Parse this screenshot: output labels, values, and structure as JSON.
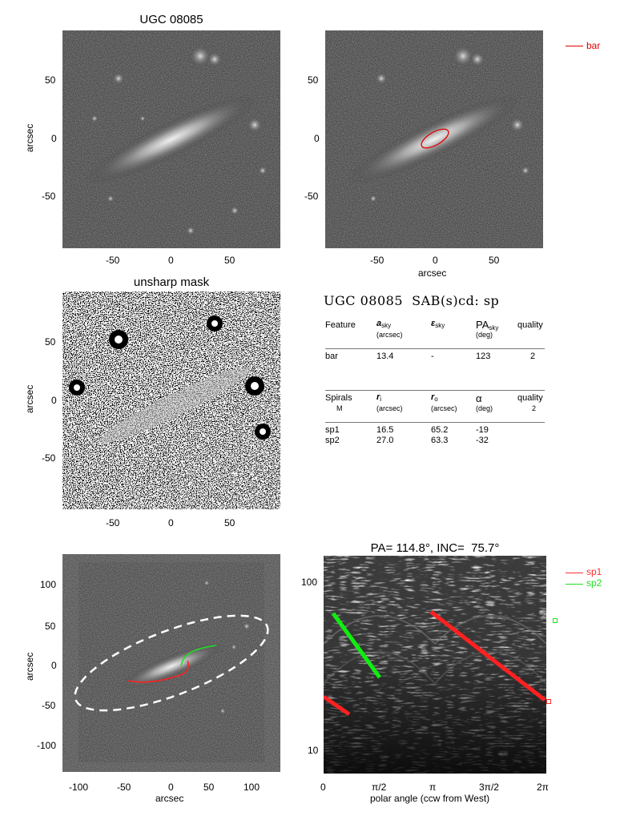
{
  "panel1": {
    "title": "UGC 08085",
    "ylabel": "arcsec",
    "yticks": [
      "50",
      "0",
      "-50"
    ],
    "xticks": [
      "-50",
      "0",
      "50"
    ]
  },
  "panel2": {
    "xlabel": "arcsec",
    "yticks": [
      "50",
      "0",
      "-50"
    ],
    "xticks": [
      "-50",
      "0",
      "50"
    ],
    "legend": "bar",
    "legend_color": "#e00000"
  },
  "panel3": {
    "title": "unsharp mask",
    "ylabel": "arcsec",
    "yticks": [
      "50",
      "0",
      "-50"
    ],
    "xticks": [
      "-50",
      "0",
      "50"
    ]
  },
  "table": {
    "heading": "UGC 08085  SAB(s)cd: sp",
    "bar_header": {
      "feature": "Feature",
      "asky": "a",
      "asky_sub": "sky",
      "asky_unit": "(arcsec)",
      "eps": "ε",
      "eps_sub": "sky",
      "pa": "PA",
      "pa_sub": "sky",
      "pa_unit": "(deg)",
      "quality": "quality"
    },
    "bar_row": {
      "feature": "bar",
      "asky": "13.4",
      "eps": "-",
      "pa": "123",
      "quality": "2"
    },
    "spiral_header": {
      "spirals": "Spirals",
      "m": "M",
      "ri": "r",
      "ri_sub": "i",
      "ri_unit": "(arcsec)",
      "ro": "r",
      "ro_sub": "o",
      "ro_unit": "(arcsec)",
      "alpha": "α",
      "alpha_unit": "(deg)",
      "quality": "quality",
      "quality_val": "2"
    },
    "spiral_rows": [
      {
        "name": "sp1",
        "ri": "16.5",
        "ro": "65.2",
        "alpha": "-19"
      },
      {
        "name": "sp2",
        "ri": "27.0",
        "ro": "63.3",
        "alpha": "-32"
      }
    ]
  },
  "panel5": {
    "xlabel": "arcsec",
    "ylabel": "arcsec",
    "yticks": [
      "100",
      "50",
      "0",
      "-50",
      "-100"
    ],
    "xticks": [
      "-100",
      "-50",
      "0",
      "50",
      "100"
    ]
  },
  "panel6": {
    "title": "PA= 114.8°, INC=  75.7°",
    "xlabel": "polar angle (ccw from West)",
    "yticks": [
      "100",
      "10"
    ],
    "xticks": [
      "0",
      "π/2",
      "π",
      "3π/2",
      "2π"
    ],
    "legend": [
      {
        "label": "sp1",
        "color": "#ff3030"
      },
      {
        "label": "sp2",
        "color": "#20e020"
      }
    ]
  }
}
